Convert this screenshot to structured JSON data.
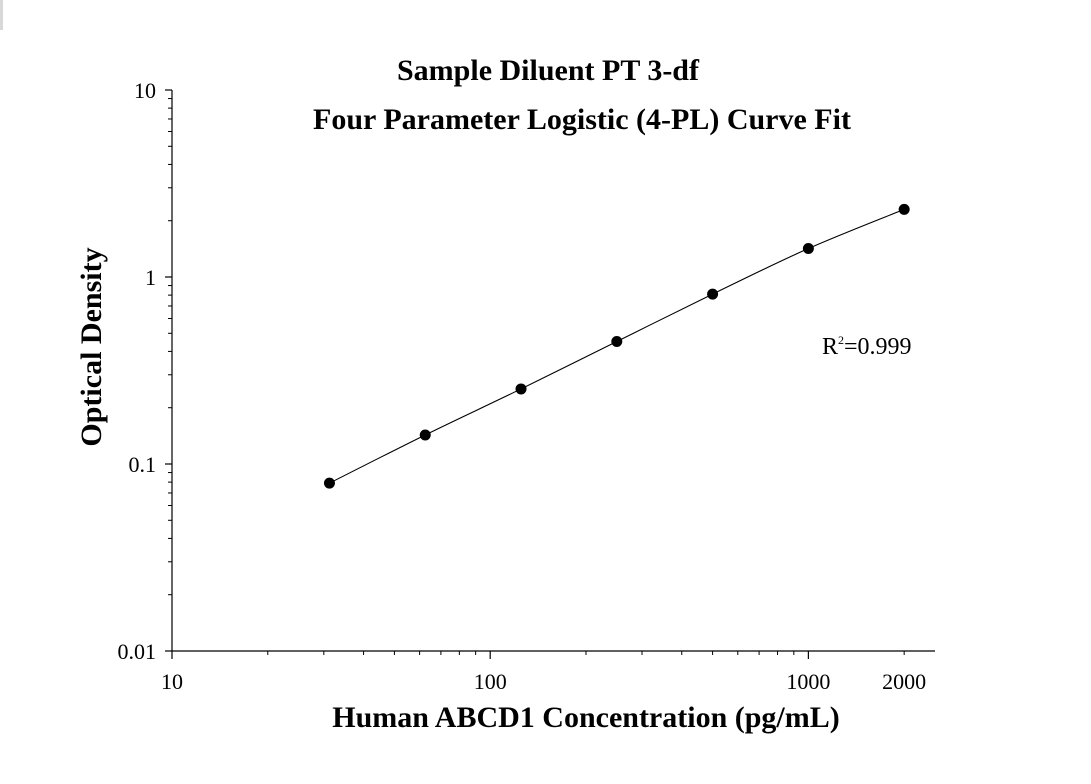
{
  "chart_data": {
    "type": "scatter",
    "title": "Sample Diluent PT 3-df",
    "subtitle": "Four Parameter Logistic (4-PL) Curve Fit",
    "xlabel": "Human ABCD1 Concentration (pg/mL)",
    "ylabel": "Optical Density",
    "xscale": "log",
    "yscale": "log",
    "xlim": [
      10,
      2500
    ],
    "ylim": [
      0.01,
      10
    ],
    "x_ticks": [
      {
        "value": 10,
        "label": "10"
      },
      {
        "value": 100,
        "label": "100"
      },
      {
        "value": 1000,
        "label": "1000"
      },
      {
        "value": 2000,
        "label": "2000"
      }
    ],
    "y_ticks": [
      {
        "value": 0.01,
        "label": "0.01"
      },
      {
        "value": 0.1,
        "label": "0.1"
      },
      {
        "value": 1,
        "label": "1"
      },
      {
        "value": 10,
        "label": "10"
      }
    ],
    "grid": false,
    "legend": "none",
    "series": [
      {
        "x": [
          31.25,
          62.5,
          125,
          250,
          500,
          1000,
          2000
        ],
        "y": [
          0.079,
          0.143,
          0.252,
          0.452,
          0.81,
          1.42,
          2.3
        ]
      }
    ],
    "fit_curve": {
      "model": "4-PL",
      "x_range": [
        31.25,
        2000
      ]
    },
    "annotation": {
      "base": "R",
      "superscript": "2",
      "text": "=0.999"
    },
    "colors": {
      "marker": "#000000",
      "line": "#000000",
      "axis": "#000000",
      "background": "#ffffff"
    }
  }
}
